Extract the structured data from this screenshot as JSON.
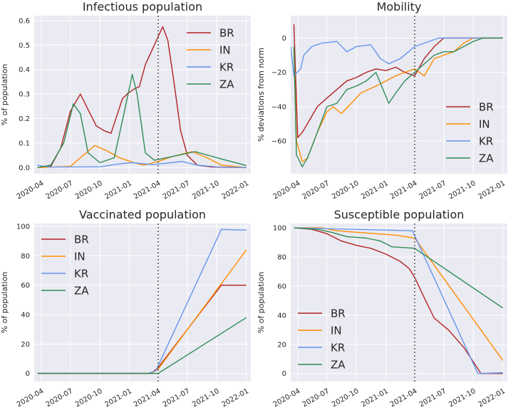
{
  "figure": {
    "background": "#ffffff",
    "axes_bg": "#eaeaf2",
    "grid_color": "#ffffff"
  },
  "chart_data": [
    {
      "type": "line",
      "title": "Infectious population",
      "xlabel": "",
      "ylabel": "% of population",
      "x_ticks": [
        "2020-04",
        "2020-07",
        "2020-10",
        "2021-01",
        "2021-04",
        "2021-07",
        "2021-10",
        "2022-01"
      ],
      "y_ticks": [
        "0.0",
        "0.1",
        "0.2",
        "0.3",
        "0.4",
        "0.5",
        "0.6"
      ],
      "ylim": [
        -0.025,
        0.62
      ],
      "x_range": [
        "2020-03-10",
        "2022-01-15"
      ],
      "vline": "2021-04-01",
      "legend": "upper right",
      "series": [
        {
          "name": "BR",
          "color": "#b22222",
          "points": [
            [
              "2020-03-20",
              0
            ],
            [
              "2020-05-01",
              0.005
            ],
            [
              "2020-06-01",
              0.08
            ],
            [
              "2020-07-01",
              0.23
            ],
            [
              "2020-08-01",
              0.3
            ],
            [
              "2020-08-20",
              0.25
            ],
            [
              "2020-09-20",
              0.17
            ],
            [
              "2020-10-15",
              0.15
            ],
            [
              "2020-11-05",
              0.14
            ],
            [
              "2020-12-10",
              0.28
            ],
            [
              "2020-12-25",
              0.3
            ],
            [
              "2021-01-15",
              0.32
            ],
            [
              "2021-02-01",
              0.33
            ],
            [
              "2021-02-20",
              0.42
            ],
            [
              "2021-03-20",
              0.5
            ],
            [
              "2021-04-15",
              0.575
            ],
            [
              "2021-05-01",
              0.52
            ],
            [
              "2021-05-20",
              0.35
            ],
            [
              "2021-06-10",
              0.15
            ],
            [
              "2021-07-01",
              0.05
            ],
            [
              "2021-08-01",
              0.01
            ],
            [
              "2021-09-15",
              0.002
            ],
            [
              "2022-01-01",
              0
            ]
          ]
        },
        {
          "name": "IN",
          "color": "#ff8c00",
          "points": [
            [
              "2020-03-20",
              0
            ],
            [
              "2020-07-01",
              0.005
            ],
            [
              "2020-08-01",
              0.04
            ],
            [
              "2020-09-15",
              0.09
            ],
            [
              "2020-10-20",
              0.07
            ],
            [
              "2020-12-01",
              0.04
            ],
            [
              "2021-01-15",
              0.02
            ],
            [
              "2021-02-15",
              0.01
            ],
            [
              "2021-04-01",
              0.025
            ],
            [
              "2021-05-15",
              0.045
            ],
            [
              "2021-07-15",
              0.065
            ],
            [
              "2021-09-01",
              0.04
            ],
            [
              "2021-10-15",
              0.01
            ],
            [
              "2022-01-01",
              0
            ]
          ]
        },
        {
          "name": "KR",
          "color": "#6495ed",
          "points": [
            [
              "2020-03-20",
              0.01
            ],
            [
              "2020-04-10",
              0.005
            ],
            [
              "2020-05-01",
              0.002
            ],
            [
              "2020-10-01",
              0.003
            ],
            [
              "2020-12-01",
              0.015
            ],
            [
              "2021-01-10",
              0.02
            ],
            [
              "2021-03-15",
              0.012
            ],
            [
              "2021-06-15",
              0.025
            ],
            [
              "2021-08-01",
              0.01
            ],
            [
              "2021-10-01",
              0.003
            ],
            [
              "2022-01-01",
              0
            ]
          ]
        },
        {
          "name": "ZA",
          "color": "#2e8b57",
          "points": [
            [
              "2020-03-20",
              0
            ],
            [
              "2020-05-01",
              0.01
            ],
            [
              "2020-06-10",
              0.1
            ],
            [
              "2020-07-10",
              0.26
            ],
            [
              "2020-08-01",
              0.22
            ],
            [
              "2020-08-25",
              0.06
            ],
            [
              "2020-10-01",
              0.02
            ],
            [
              "2020-11-15",
              0.04
            ],
            [
              "2020-12-15",
              0.22
            ],
            [
              "2021-01-10",
              0.38
            ],
            [
              "2021-01-25",
              0.3
            ],
            [
              "2021-02-20",
              0.06
            ],
            [
              "2021-03-20",
              0.03
            ],
            [
              "2021-05-15",
              0.045
            ],
            [
              "2021-07-25",
              0.065
            ],
            [
              "2021-10-01",
              0.04
            ],
            [
              "2022-01-01",
              0.008
            ]
          ]
        }
      ]
    },
    {
      "type": "line",
      "title": "Mobility",
      "xlabel": "",
      "ylabel": "% deviations from norm",
      "x_ticks": [
        "2020-04",
        "2020-07",
        "2020-10",
        "2021-01",
        "2021-04",
        "2021-07",
        "2021-10",
        "2022-01"
      ],
      "y_ticks": [
        "−60",
        "−40",
        "−20",
        "0"
      ],
      "ylim": [
        -79,
        13
      ],
      "x_range": [
        "2020-03-10",
        "2022-01-15"
      ],
      "vline": "2021-04-01",
      "legend": "lower right",
      "series": [
        {
          "name": "BR",
          "color": "#b22222",
          "points": [
            [
              "2020-03-20",
              8
            ],
            [
              "2020-03-25",
              -20
            ],
            [
              "2020-04-01",
              -58
            ],
            [
              "2020-04-15",
              -55
            ],
            [
              "2020-05-01",
              -50
            ],
            [
              "2020-06-01",
              -40
            ],
            [
              "2020-07-01",
              -35
            ],
            [
              "2020-08-01",
              -30
            ],
            [
              "2020-09-01",
              -25
            ],
            [
              "2020-10-01",
              -23
            ],
            [
              "2020-11-01",
              -20
            ],
            [
              "2020-12-01",
              -18
            ],
            [
              "2021-01-01",
              -19
            ],
            [
              "2021-02-01",
              -17
            ],
            [
              "2021-03-01",
              -20
            ],
            [
              "2021-04-01",
              -22
            ],
            [
              "2021-05-01",
              -12
            ],
            [
              "2021-06-01",
              -5
            ],
            [
              "2021-07-01",
              0
            ],
            [
              "2021-10-01",
              0
            ],
            [
              "2022-01-01",
              0
            ]
          ]
        },
        {
          "name": "IN",
          "color": "#ff8c00",
          "points": [
            [
              "2020-03-20",
              -5
            ],
            [
              "2020-03-28",
              -60
            ],
            [
              "2020-04-15",
              -72
            ],
            [
              "2020-05-01",
              -70
            ],
            [
              "2020-06-01",
              -55
            ],
            [
              "2020-07-01",
              -43
            ],
            [
              "2020-07-20",
              -40
            ],
            [
              "2020-08-15",
              -44
            ],
            [
              "2020-09-15",
              -38
            ],
            [
              "2020-10-15",
              -32
            ],
            [
              "2020-12-01",
              -28
            ],
            [
              "2021-01-01",
              -25
            ],
            [
              "2021-02-01",
              -22
            ],
            [
              "2021-03-01",
              -20
            ],
            [
              "2021-04-01",
              -18
            ],
            [
              "2021-05-01",
              -22
            ],
            [
              "2021-06-01",
              -12
            ],
            [
              "2021-07-01",
              -10
            ],
            [
              "2021-08-01",
              -8
            ],
            [
              "2021-09-01",
              -3
            ],
            [
              "2021-10-01",
              0
            ],
            [
              "2022-01-01",
              0
            ]
          ]
        },
        {
          "name": "KR",
          "color": "#6495ed",
          "points": [
            [
              "2020-03-10",
              -5
            ],
            [
              "2020-03-20",
              -22
            ],
            [
              "2020-04-10",
              -18
            ],
            [
              "2020-04-20",
              -10
            ],
            [
              "2020-05-15",
              -5
            ],
            [
              "2020-06-15",
              -3
            ],
            [
              "2020-08-01",
              -2
            ],
            [
              "2020-09-01",
              -8
            ],
            [
              "2020-10-01",
              -5
            ],
            [
              "2020-11-15",
              -4
            ],
            [
              "2020-12-15",
              -12
            ],
            [
              "2021-01-10",
              -15
            ],
            [
              "2021-02-15",
              -12
            ],
            [
              "2021-04-01",
              -5
            ],
            [
              "2021-05-01",
              -3
            ],
            [
              "2021-06-15",
              0
            ],
            [
              "2022-01-01",
              0
            ]
          ]
        },
        {
          "name": "ZA",
          "color": "#2e8b57",
          "points": [
            [
              "2020-03-20",
              -5
            ],
            [
              "2020-03-28",
              -68
            ],
            [
              "2020-04-15",
              -75
            ],
            [
              "2020-05-01",
              -70
            ],
            [
              "2020-06-01",
              -55
            ],
            [
              "2020-07-01",
              -40
            ],
            [
              "2020-08-01",
              -38
            ],
            [
              "2020-09-01",
              -30
            ],
            [
              "2020-10-01",
              -28
            ],
            [
              "2020-11-01",
              -25
            ],
            [
              "2020-12-01",
              -20
            ],
            [
              "2021-01-10",
              -38
            ],
            [
              "2021-02-01",
              -32
            ],
            [
              "2021-03-01",
              -25
            ],
            [
              "2021-04-01",
              -20
            ],
            [
              "2021-05-01",
              -15
            ],
            [
              "2021-06-01",
              -10
            ],
            [
              "2021-07-01",
              -8
            ],
            [
              "2021-08-01",
              -8
            ],
            [
              "2021-09-01",
              -5
            ],
            [
              "2021-10-01",
              -2
            ],
            [
              "2021-11-01",
              0
            ],
            [
              "2022-01-01",
              0
            ]
          ]
        }
      ]
    },
    {
      "type": "line",
      "title": "Vaccinated population",
      "xlabel": "",
      "ylabel": "% of population",
      "x_ticks": [
        "2020-04",
        "2020-07",
        "2020-10",
        "2021-01",
        "2021-04",
        "2021-07",
        "2021-10",
        "2022-01"
      ],
      "y_ticks": [
        "0",
        "20",
        "40",
        "60",
        "80",
        "100"
      ],
      "ylim": [
        -5.5,
        102
      ],
      "x_range": [
        "2020-03-10",
        "2022-01-15"
      ],
      "vline": "2021-04-01",
      "legend": "upper left",
      "series": [
        {
          "name": "BR",
          "color": "#b22222",
          "points": [
            [
              "2020-03-20",
              0
            ],
            [
              "2021-03-10",
              0
            ],
            [
              "2021-04-01",
              4
            ],
            [
              "2021-10-15",
              60
            ],
            [
              "2022-01-01",
              60
            ]
          ]
        },
        {
          "name": "IN",
          "color": "#ff8c00",
          "points": [
            [
              "2020-03-20",
              0
            ],
            [
              "2021-03-10",
              0
            ],
            [
              "2021-04-01",
              3
            ],
            [
              "2022-01-01",
              84
            ]
          ]
        },
        {
          "name": "KR",
          "color": "#6495ed",
          "points": [
            [
              "2020-03-20",
              0
            ],
            [
              "2021-03-01",
              0
            ],
            [
              "2021-03-25",
              2
            ],
            [
              "2021-10-15",
              98
            ],
            [
              "2022-01-01",
              97.5
            ]
          ]
        },
        {
          "name": "ZA",
          "color": "#2e8b57",
          "points": [
            [
              "2020-03-20",
              0
            ],
            [
              "2021-04-01",
              0
            ],
            [
              "2022-01-01",
              38
            ]
          ]
        }
      ]
    },
    {
      "type": "line",
      "title": "Susceptible population",
      "xlabel": "",
      "ylabel": "% of population",
      "x_ticks": [
        "2020-04",
        "2020-07",
        "2020-10",
        "2021-01",
        "2021-04",
        "2021-07",
        "2021-10",
        "2022-01"
      ],
      "y_ticks": [
        "0",
        "20",
        "40",
        "60",
        "80",
        "100"
      ],
      "ylim": [
        -5.5,
        103
      ],
      "x_range": [
        "2020-03-10",
        "2022-01-15"
      ],
      "vline": "2021-04-01",
      "legend": "lower left",
      "series": [
        {
          "name": "BR",
          "color": "#b22222",
          "points": [
            [
              "2020-03-20",
              100
            ],
            [
              "2020-05-15",
              99
            ],
            [
              "2020-07-01",
              96
            ],
            [
              "2020-08-15",
              91
            ],
            [
              "2020-10-01",
              88
            ],
            [
              "2020-11-15",
              86
            ],
            [
              "2021-01-01",
              82
            ],
            [
              "2021-02-15",
              77
            ],
            [
              "2021-03-15",
              72
            ],
            [
              "2021-04-01",
              66
            ],
            [
              "2021-05-01",
              52
            ],
            [
              "2021-06-01",
              38
            ],
            [
              "2021-07-15",
              30
            ],
            [
              "2021-09-01",
              18
            ],
            [
              "2021-10-25",
              0
            ],
            [
              "2022-01-01",
              0
            ]
          ]
        },
        {
          "name": "IN",
          "color": "#ff8c00",
          "points": [
            [
              "2020-03-20",
              100
            ],
            [
              "2020-06-15",
              100
            ],
            [
              "2020-08-01",
              98
            ],
            [
              "2020-10-01",
              97
            ],
            [
              "2020-12-01",
              96
            ],
            [
              "2021-02-01",
              95
            ],
            [
              "2021-04-01",
              93
            ],
            [
              "2022-01-01",
              9
            ]
          ]
        },
        {
          "name": "KR",
          "color": "#6495ed",
          "points": [
            [
              "2020-03-20",
              100
            ],
            [
              "2021-03-25",
              98
            ],
            [
              "2021-10-15",
              0
            ],
            [
              "2022-01-01",
              0.5
            ]
          ]
        },
        {
          "name": "ZA",
          "color": "#2e8b57",
          "points": [
            [
              "2020-03-20",
              100
            ],
            [
              "2020-06-01",
              99
            ],
            [
              "2020-07-15",
              97
            ],
            [
              "2020-09-01",
              94
            ],
            [
              "2020-11-01",
              93
            ],
            [
              "2020-12-15",
              91
            ],
            [
              "2021-01-20",
              87
            ],
            [
              "2021-04-01",
              86
            ],
            [
              "2022-01-01",
              45
            ]
          ]
        }
      ]
    }
  ]
}
